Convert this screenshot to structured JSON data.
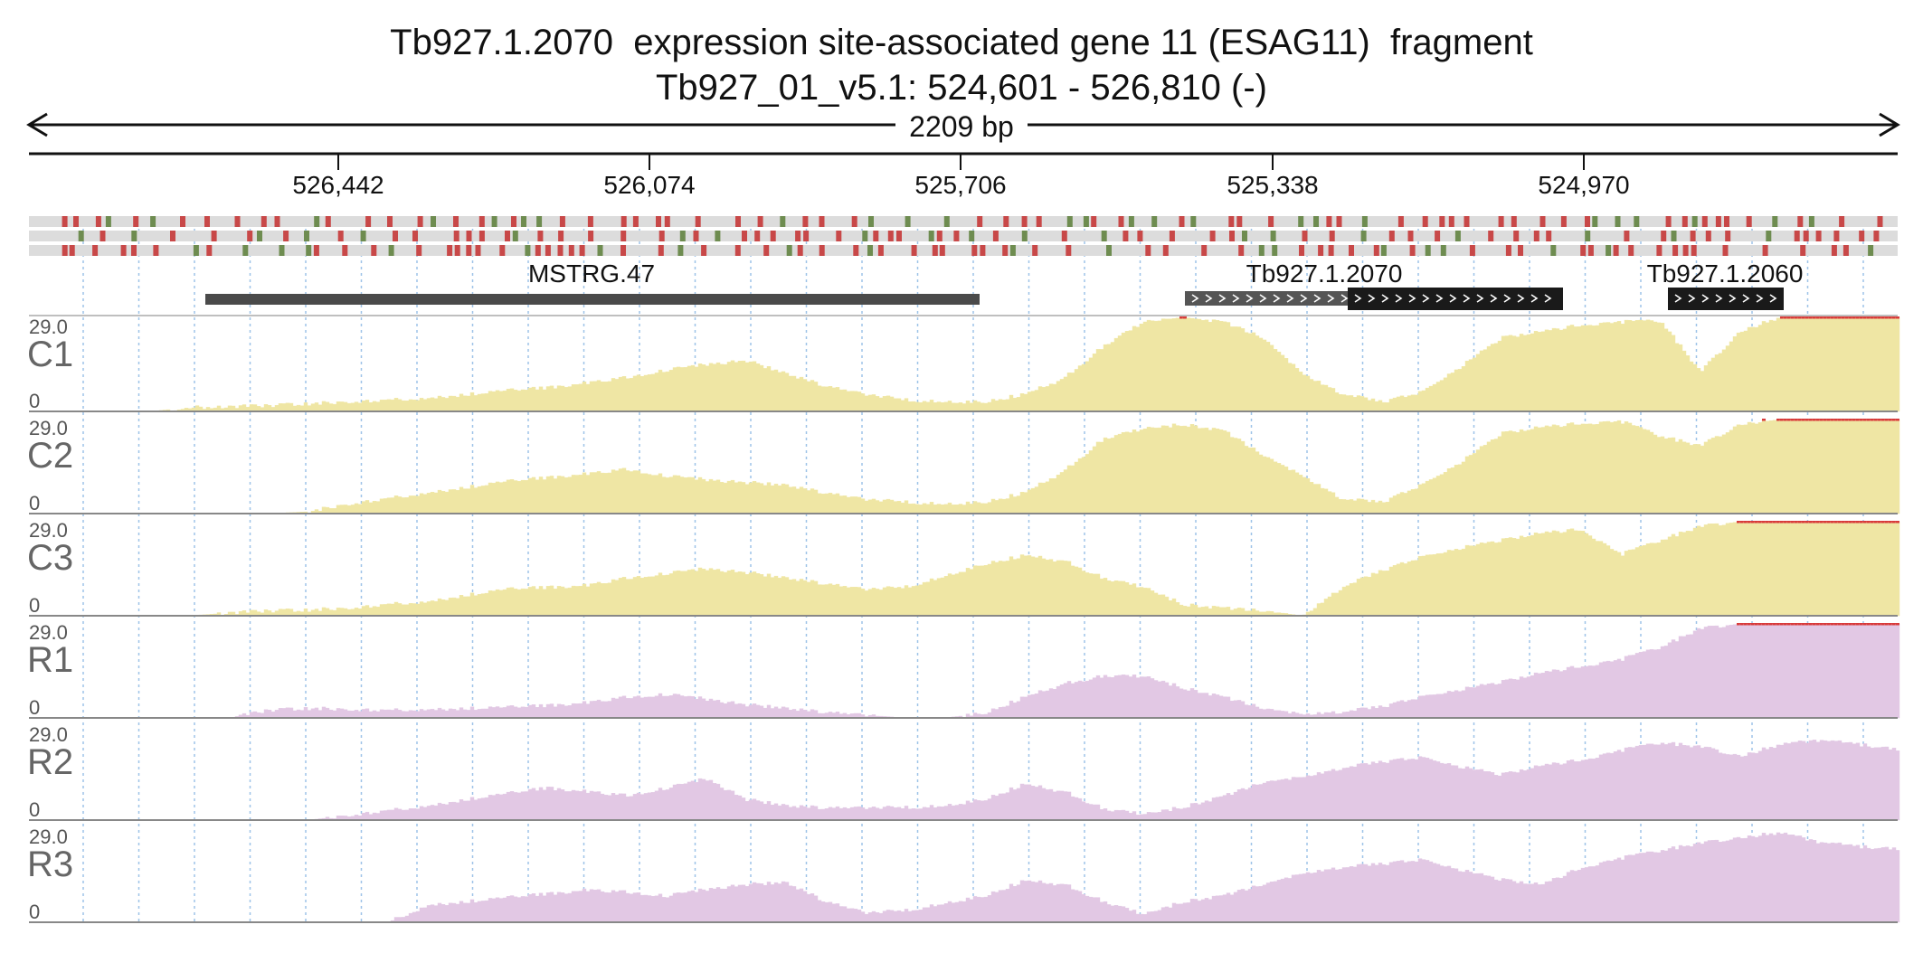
{
  "title": {
    "line1": "Tb927.1.2070  expression site-associated gene 11 (ESAG11)  fragment",
    "line2": "Tb927_01_v5.1: 524,601 - 526,810 (-)"
  },
  "span_label": "2209 bp",
  "ruler_ticks": [
    "526,442",
    "526,074",
    "525,706",
    "525,338",
    "524,970"
  ],
  "genes": [
    {
      "name": "MSTRG.47",
      "strand": "none",
      "color": "#4a4a4a"
    },
    {
      "name": "Tb927.1.2070",
      "strand": ">",
      "color": "#1a1a1a",
      "partial_color": "#555555"
    },
    {
      "name": "Tb927.1.2060",
      "strand": ">",
      "color": "#1a1a1a"
    }
  ],
  "variant_colors": {
    "red": "#c84848",
    "green": "#6e8c50",
    "background": "#dcdcdc"
  },
  "track_max": "29.0",
  "track_min": "0",
  "tracks": [
    {
      "name": "C1",
      "color": "#efe6a4",
      "clip_color": "#d83a3a",
      "profile": [
        0,
        0,
        0,
        0,
        0.04,
        0.05,
        0.06,
        0.08,
        0.1,
        0.12,
        0.14,
        0.18,
        0.22,
        0.25,
        0.3,
        0.36,
        0.44,
        0.5,
        0.54,
        0.4,
        0.27,
        0.18,
        0.12,
        0.1,
        0.1,
        0.18,
        0.35,
        0.7,
        0.95,
        1.0,
        0.95,
        0.78,
        0.4,
        0.18,
        0.1,
        0.2,
        0.48,
        0.78,
        0.85,
        0.92,
        0.95,
        0.96,
        0.42,
        0.85,
        1.0,
        1.0,
        1.0,
        1.0
      ]
    },
    {
      "name": "C2",
      "color": "#efe6a4",
      "clip_color": "#d83a3a",
      "profile": [
        0,
        0,
        0,
        0,
        0,
        0,
        0,
        0.02,
        0.1,
        0.16,
        0.22,
        0.28,
        0.34,
        0.38,
        0.42,
        0.47,
        0.4,
        0.36,
        0.33,
        0.3,
        0.22,
        0.15,
        0.12,
        0.1,
        0.12,
        0.22,
        0.45,
        0.8,
        0.9,
        0.95,
        0.88,
        0.62,
        0.4,
        0.15,
        0.12,
        0.3,
        0.55,
        0.85,
        0.92,
        0.96,
        0.98,
        0.82,
        0.72,
        0.95,
        1.0,
        1.0,
        1.0,
        1.0
      ]
    },
    {
      "name": "C3",
      "color": "#efe6a4",
      "clip_color": "#d83a3a",
      "profile": [
        0,
        0,
        0,
        0,
        0,
        0.03,
        0.05,
        0.06,
        0.08,
        0.12,
        0.15,
        0.22,
        0.28,
        0.3,
        0.32,
        0.4,
        0.45,
        0.5,
        0.46,
        0.4,
        0.34,
        0.28,
        0.3,
        0.42,
        0.55,
        0.64,
        0.58,
        0.4,
        0.3,
        0.12,
        0.08,
        0.05,
        0.0,
        0.3,
        0.48,
        0.62,
        0.72,
        0.8,
        0.88,
        0.92,
        0.65,
        0.8,
        0.95,
        1.0,
        1.0,
        1.0,
        1.0,
        1.0
      ]
    },
    {
      "name": "R1",
      "color": "#e2c8e4",
      "clip_color": "#d83a3a",
      "profile": [
        0,
        0,
        0,
        0,
        0,
        0,
        0.08,
        0.1,
        0.09,
        0.08,
        0.09,
        0.1,
        0.11,
        0.13,
        0.16,
        0.22,
        0.25,
        0.2,
        0.14,
        0.1,
        0.06,
        0.03,
        0.0,
        0.0,
        0.05,
        0.22,
        0.36,
        0.45,
        0.44,
        0.32,
        0.22,
        0.1,
        0.04,
        0.06,
        0.12,
        0.22,
        0.3,
        0.38,
        0.48,
        0.55,
        0.62,
        0.75,
        0.95,
        1.0,
        1.0,
        1.0,
        1.0,
        1.0
      ]
    },
    {
      "name": "R2",
      "color": "#e2c8e4",
      "clip_color": "#d83a3a",
      "profile": [
        0,
        0,
        0,
        0,
        0,
        0,
        0,
        0,
        0.05,
        0.1,
        0.15,
        0.22,
        0.28,
        0.34,
        0.3,
        0.26,
        0.34,
        0.44,
        0.22,
        0.15,
        0.13,
        0.13,
        0.13,
        0.15,
        0.22,
        0.38,
        0.3,
        0.12,
        0.06,
        0.14,
        0.25,
        0.4,
        0.46,
        0.55,
        0.62,
        0.66,
        0.56,
        0.48,
        0.58,
        0.64,
        0.74,
        0.82,
        0.78,
        0.68,
        0.8,
        0.85,
        0.8,
        0.75
      ]
    },
    {
      "name": "R3",
      "color": "#e2c8e4",
      "clip_color": "#d83a3a",
      "profile": [
        0,
        0,
        0,
        0,
        0,
        0,
        0,
        0,
        0,
        0,
        0.18,
        0.22,
        0.26,
        0.3,
        0.34,
        0.32,
        0.28,
        0.35,
        0.4,
        0.42,
        0.22,
        0.1,
        0.12,
        0.2,
        0.28,
        0.44,
        0.4,
        0.22,
        0.08,
        0.22,
        0.28,
        0.4,
        0.52,
        0.58,
        0.62,
        0.66,
        0.55,
        0.45,
        0.4,
        0.58,
        0.68,
        0.76,
        0.84,
        0.9,
        0.95,
        0.85,
        0.8,
        0.78
      ]
    }
  ]
}
